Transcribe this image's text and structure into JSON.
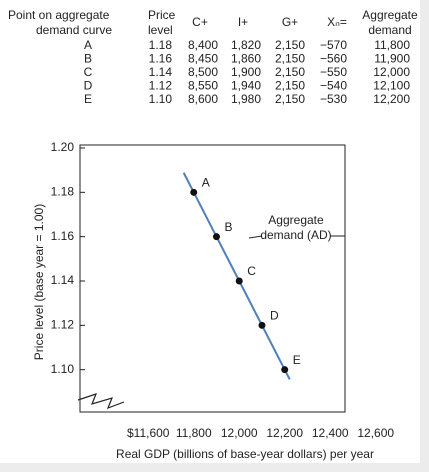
{
  "table": {
    "headers": [
      "Point on aggregate",
      "demand curve",
      "Price",
      "level",
      "C+",
      "I+",
      "G+",
      "Xₙ=",
      "Aggregate",
      "demand"
    ],
    "rows": [
      [
        "A",
        "1.18",
        "8,400",
        "1,820",
        "2,150",
        "−570",
        "11,800"
      ],
      [
        "B",
        "1.16",
        "8,450",
        "1,860",
        "2,150",
        "−560",
        "11,900"
      ],
      [
        "C",
        "1.14",
        "8,500",
        "1,900",
        "2,150",
        "−550",
        "12,000"
      ],
      [
        "D",
        "1.12",
        "8,550",
        "1,940",
        "2,150",
        "−540",
        "12,100"
      ],
      [
        "E",
        "1.10",
        "8,600",
        "1,980",
        "2,150",
        "−530",
        "12,200"
      ]
    ]
  },
  "chart_data": {
    "type": "line",
    "x_label": "Real GDP (billions of base-year dollars) per year",
    "y_label": "Price level (base year = 1.00)",
    "series": [
      {
        "color": "#4f7fba",
        "x": [
          11800,
          11900,
          12000,
          12100,
          12200
        ],
        "values": [
          1.18,
          1.16,
          1.14,
          1.12,
          1.1
        ],
        "point_labels": [
          "A",
          "B",
          "C",
          "D",
          "E"
        ]
      }
    ],
    "annotation": [
      "Aggregate",
      "demand (AD)"
    ],
    "xlim": [
      11300,
      12465
    ],
    "xticks": [
      {
        "value": 11600,
        "label": "$11,600"
      },
      {
        "value": 11800,
        "label": "11,800"
      },
      {
        "value": 12000,
        "label": "12,000"
      },
      {
        "value": 12200,
        "label": "12,200"
      },
      {
        "value": 12400,
        "label": "12,400"
      },
      {
        "value": 12600,
        "label": "12,600"
      }
    ],
    "ylim": [
      1.08,
      1.2
    ],
    "yticks": [
      {
        "value": 1.1,
        "label": "1.10"
      },
      1.12,
      1.14,
      1.16,
      1.18,
      {
        "value": 1.2,
        "label": "1.20"
      }
    ]
  }
}
